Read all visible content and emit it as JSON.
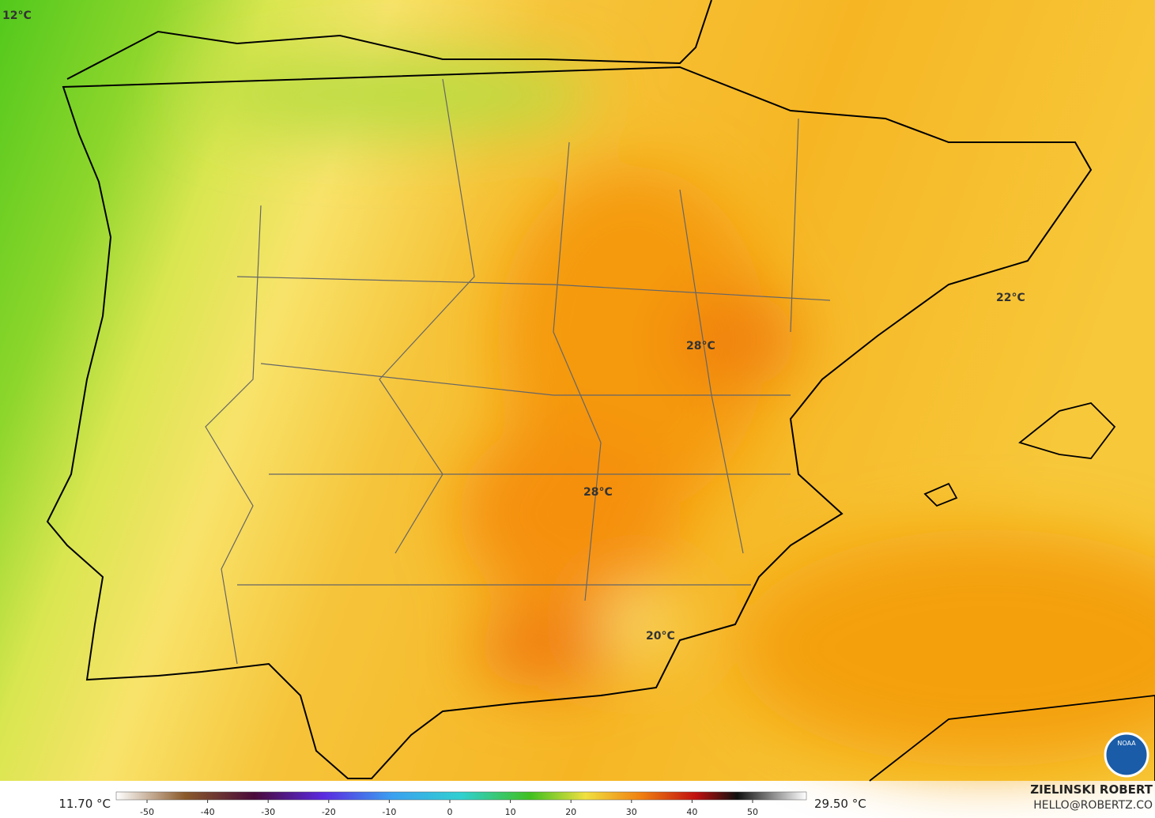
{
  "map": {
    "labels": [
      "12°C",
      "22°C",
      "28°C",
      "28°C",
      "20°C"
    ]
  },
  "legend": {
    "min_label": "11.70 °C",
    "max_label": "29.50 °C",
    "ticks": [
      -50,
      -40,
      -30,
      -20,
      -10,
      0,
      10,
      20,
      30,
      40,
      50
    ]
  },
  "credit": {
    "name": "ZIELINSKI ROBERT",
    "email": "HELLO@ROBERTZ.CO",
    "logo": "NOAA"
  }
}
